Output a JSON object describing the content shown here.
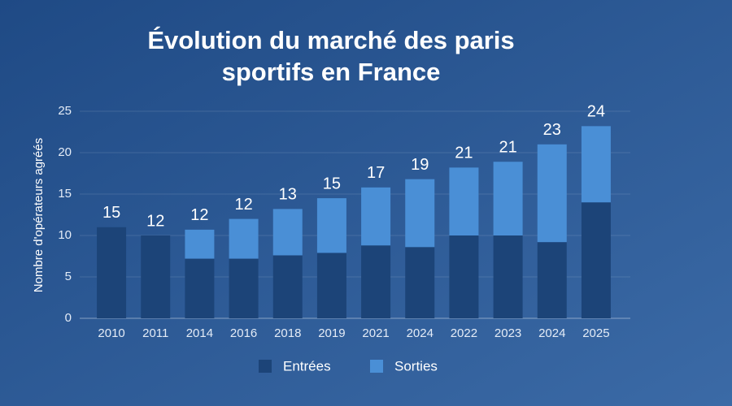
{
  "chart_data": {
    "type": "stacked_bar",
    "title_lines": [
      "Évolution du marché des paris",
      "sportifs en France"
    ],
    "y_label": "Nombre d'opérateurs agréés",
    "categories": [
      "2010",
      "2011",
      "2014",
      "2016",
      "2018",
      "2019",
      "2021",
      "2024",
      "2022",
      "2023",
      "2024",
      "2025"
    ],
    "series": [
      {
        "name": "Entrées",
        "color": "#1c4478",
        "values": [
          11,
          10,
          7.2,
          7.2,
          7.6,
          7.9,
          8.8,
          8.6,
          10,
          10,
          9.2,
          14
        ]
      },
      {
        "name": "Sorties",
        "color": "#4a8fd6",
        "values": [
          0,
          0,
          3.5,
          4.8,
          5.6,
          6.6,
          7,
          8.2,
          8.2,
          8.9,
          11.8,
          9.2
        ]
      }
    ],
    "annotations": [
      "15",
      "12",
      "12",
      "12",
      "13",
      "15",
      "17",
      "19",
      "21",
      "21",
      "23",
      "24"
    ],
    "ylim": [
      0,
      25
    ],
    "yticks": [
      0,
      5,
      10,
      15,
      20,
      25
    ],
    "grid": true
  }
}
